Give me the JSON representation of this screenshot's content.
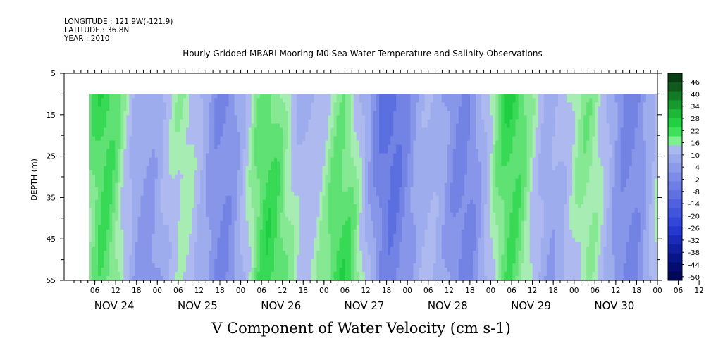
{
  "header": {
    "longitude": "LONGITUDE : 121.9W(-121.9)",
    "latitude": "LATITUDE : 36.8N",
    "year": "YEAR : 2010"
  },
  "chart_data": {
    "type": "heatmap",
    "title": "Hourly Gridded MBARI Mooring M0 Sea Water Temperature and Salinity Observations",
    "xlabel": "V Component of Water Velocity (cm s-1)",
    "ylabel": "DEPTH (m)",
    "ylim": [
      55,
      5
    ],
    "y_ticks": [
      5,
      15,
      25,
      35,
      45,
      55
    ],
    "x_hour_ticks": [
      "06",
      "12",
      "18",
      "00",
      "06",
      "12",
      "18",
      "00",
      "06",
      "12",
      "18",
      "00",
      "06",
      "12",
      "18",
      "00",
      "06",
      "12",
      "18",
      "00",
      "06",
      "12",
      "18",
      "00",
      "06",
      "12",
      "18",
      "00",
      "06",
      "12",
      "18",
      "00"
    ],
    "x_day_labels": [
      "NOV 24",
      "NOV 25",
      "NOV 26",
      "NOV 27",
      "NOV 28",
      "NOV 29",
      "NOV 30"
    ],
    "data_depth_range": [
      10,
      55
    ],
    "colorbar_levels": [
      46,
      40,
      34,
      28,
      22,
      16,
      10,
      4,
      -2,
      -8,
      -14,
      -20,
      -26,
      -32,
      -38,
      -44,
      -50
    ],
    "colorbar_colors_pos": [
      "#0b3d14",
      "#0f5a1c",
      "#137a25",
      "#18992e",
      "#1db838",
      "#22d042",
      "#3fe05c",
      "#7ef08f"
    ],
    "colorbar_colors_neg": [
      "#a9b8ee",
      "#9aa9ec",
      "#8c9be9",
      "#7d8ce6",
      "#6e7ee4",
      "#5f70e1",
      "#5062df",
      "#4154dc",
      "#3246d9",
      "#2538cf",
      "#1a2bb8",
      "#1020a0",
      "#081588",
      "#040c70",
      "#020858"
    ]
  }
}
